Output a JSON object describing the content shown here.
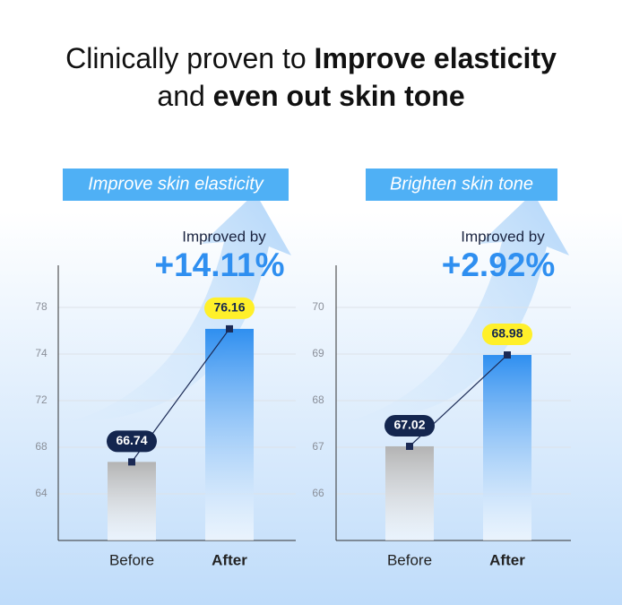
{
  "header": {
    "line1": [
      "Clinically proven to ",
      "Improve elasticity"
    ],
    "line2": [
      "and ",
      "even out skin tone"
    ]
  },
  "chart_data": [
    {
      "type": "bar",
      "title": "Improve skin elasticity",
      "annotation": "Improved by",
      "annotation_value": "+14.11%",
      "categories": [
        "Before",
        "After"
      ],
      "values": [
        66.74,
        76.16
      ],
      "colors": [
        "#b3b3b3",
        "#2f8ff0"
      ],
      "ylim": [
        60,
        82
      ],
      "yticks": [
        64,
        68,
        72,
        74,
        78
      ],
      "grid": true
    },
    {
      "type": "bar",
      "title": "Brighten skin tone",
      "annotation": "Improved by",
      "annotation_value": "+2.92%",
      "categories": [
        "Before",
        "After"
      ],
      "values": [
        67.02,
        68.98
      ],
      "colors": [
        "#b3b3b3",
        "#2f8ff0"
      ],
      "ylim": [
        65,
        71
      ],
      "yticks": [
        66,
        67,
        68,
        69,
        70
      ],
      "grid": true
    }
  ]
}
